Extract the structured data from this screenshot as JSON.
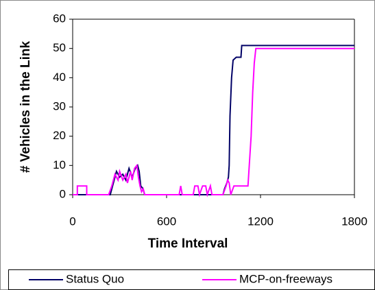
{
  "chart_data": {
    "type": "line",
    "xlabel": "Time Interval",
    "ylabel": "# Vehicles in the Link",
    "xlim": [
      0,
      1800
    ],
    "xticks": [
      0,
      600,
      1200,
      1800
    ],
    "ylim": [
      0,
      60
    ],
    "yticks": [
      0,
      10,
      20,
      30,
      40,
      50,
      60
    ],
    "legend": "bottom",
    "series": [
      {
        "name": "Status Quo",
        "color": "#000066",
        "x": [
          0,
          240,
          260,
          280,
          300,
          320,
          340,
          360,
          380,
          400,
          415,
          425,
          435,
          450,
          460,
          960,
          970,
          985,
          995,
          1000,
          1005,
          1015,
          1025,
          1045,
          1075,
          1080,
          1800
        ],
        "values": [
          0,
          0,
          4,
          8,
          6,
          7,
          5,
          9,
          6,
          9,
          10,
          8,
          3,
          2,
          0,
          0,
          2,
          4,
          6,
          10,
          27,
          40,
          46,
          47,
          47,
          51,
          51
        ]
      },
      {
        "name": "MCP-on-freeways",
        "color": "#ff00ff",
        "x": [
          0,
          30,
          30,
          90,
          90,
          230,
          250,
          270,
          290,
          300,
          320,
          340,
          350,
          370,
          380,
          395,
          410,
          420,
          430,
          440,
          450,
          460,
          680,
          690,
          700,
          770,
          780,
          800,
          810,
          830,
          850,
          860,
          880,
          890,
          960,
          980,
          990,
          1000,
          1010,
          1030,
          1120,
          1140,
          1150,
          1160,
          1170,
          1800
        ],
        "values": [
          0,
          0,
          3,
          3,
          0,
          0,
          3,
          7,
          5,
          8,
          5,
          7,
          4,
          8,
          5,
          9,
          10,
          6,
          3,
          1,
          2,
          0,
          0,
          3,
          0,
          0,
          3,
          3,
          0,
          3,
          3,
          0,
          3,
          0,
          0,
          3,
          5,
          4,
          0,
          3,
          3,
          20,
          35,
          45,
          50,
          50
        ]
      }
    ]
  }
}
